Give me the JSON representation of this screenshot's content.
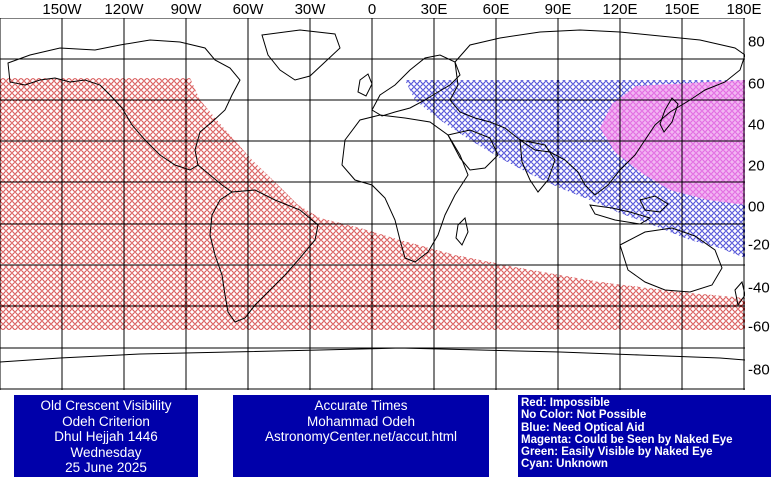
{
  "map": {
    "longitude_labels": [
      "150W",
      "120W",
      "90W",
      "60W",
      "30W",
      "0",
      "30E",
      "60E",
      "90E",
      "120E",
      "150E",
      "180E"
    ],
    "latitude_labels": [
      "80",
      "60",
      "40",
      "20",
      "00",
      "-20",
      "-40",
      "-60",
      "-80"
    ],
    "grid": true,
    "projection": "cylindrical",
    "extent": {
      "lon": [
        -180,
        180
      ],
      "lat": [
        -90,
        90
      ]
    },
    "colors": {
      "impossible": "#cc2222",
      "need_optical_aid": "#1f1fcc",
      "naked_eye": "#dd55dd",
      "land_outline": "#000000",
      "grid": "#000000"
    },
    "regions": [
      {
        "name": "impossible",
        "color": "#cc2222",
        "description_ref": "legend.0"
      },
      {
        "name": "need-optical-aid",
        "color": "#1f1fcc",
        "description_ref": "legend.2"
      },
      {
        "name": "could-be-seen-naked-eye",
        "color": "#dd55dd",
        "description_ref": "legend.3"
      }
    ]
  },
  "info_left": {
    "line1": "Old Crescent Visibility",
    "line2": "Odeh Criterion",
    "line3": "Dhul Hejjah 1446",
    "line4": "Wednesday",
    "line5": "25 June 2025"
  },
  "info_mid": {
    "line1": "Accurate Times",
    "line2": "Mohammad Odeh",
    "line3": "AstronomyCenter.net/accut.html"
  },
  "legend": [
    "Red: Impossible",
    "No Color: Not Possible",
    "Blue: Need Optical Aid",
    "Magenta: Could be Seen by Naked Eye",
    "Green: Easily Visible by Naked Eye",
    "Cyan: Unknown"
  ],
  "info_box_color": "#0000aa"
}
